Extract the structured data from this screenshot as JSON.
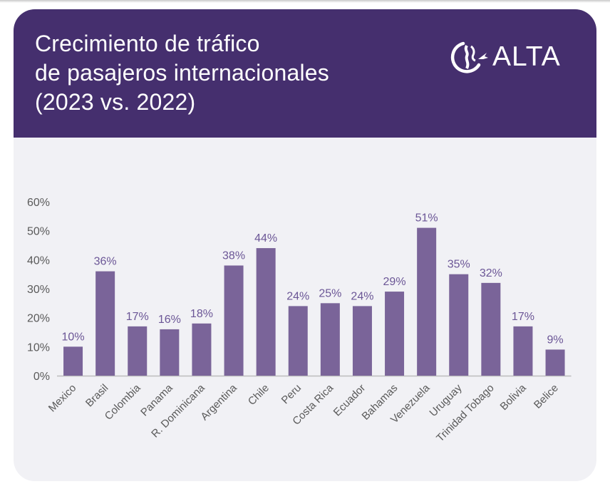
{
  "header": {
    "title_lines": [
      "Crecimiento de tráfico",
      "de pasajeros internacionales",
      "(2023 vs. 2022)"
    ],
    "logo_text": "ALTA"
  },
  "colors": {
    "header_bg": "#452f6e",
    "card_bg": "#f1f1f5",
    "bar": "#7a6499",
    "data_label": "#6b5696",
    "axis_text": "#5a5a5a",
    "axis_line": "#bdbdbd"
  },
  "chart_data": {
    "type": "bar",
    "categories": [
      "Mexico",
      "Brasil",
      "Colombia",
      "Panama",
      "R. Dominicana",
      "Argentina",
      "Chile",
      "Peru",
      "Costa Rica",
      "Ecuador",
      "Bahamas",
      "Venezuela",
      "Uruguay",
      "Trinidad Tobago",
      "Bolivia",
      "Belice"
    ],
    "values": [
      10,
      36,
      17,
      16,
      18,
      38,
      44,
      24,
      25,
      24,
      29,
      51,
      35,
      32,
      17,
      9
    ],
    "value_labels": [
      "10%",
      "36%",
      "17%",
      "16%",
      "18%",
      "38%",
      "44%",
      "24%",
      "25%",
      "24%",
      "29%",
      "51%",
      "35%",
      "32%",
      "17%",
      "9%"
    ],
    "y_ticks": [
      "0%",
      "10%",
      "20%",
      "30%",
      "40%",
      "50%",
      "60%"
    ],
    "ylim": [
      0,
      60
    ],
    "grid": false,
    "title": "Crecimiento de tráfico de pasajeros internacionales (2023 vs. 2022)"
  }
}
